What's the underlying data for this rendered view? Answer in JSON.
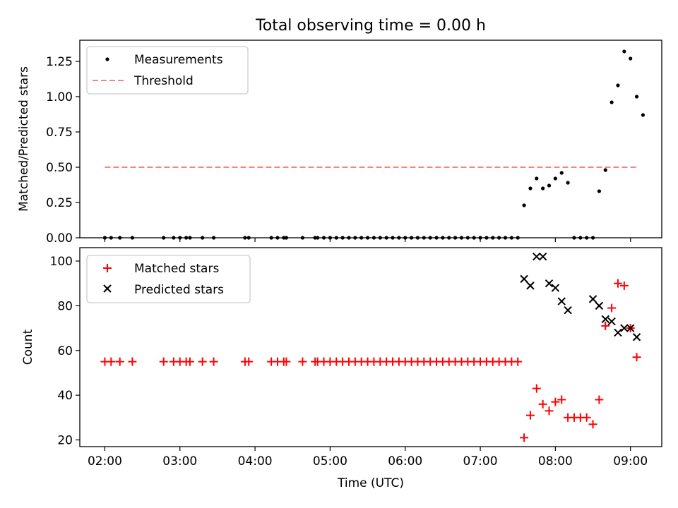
{
  "title": "Total observing time = 0.00 h",
  "colors": {
    "measurement": "#000000",
    "threshold": "#ff8080",
    "matched": "#ff0000",
    "predicted": "#000000"
  },
  "chart_data": [
    {
      "type": "scatter",
      "ylabel": "Matched/Predicted stars",
      "ylim": [
        0,
        1.4
      ],
      "xlim": [
        "01:40",
        "09:25"
      ],
      "yticks": [
        {
          "v": 0,
          "label": "0.00"
        },
        {
          "v": 0.25,
          "label": "0.25"
        },
        {
          "v": 0.5,
          "label": "0.50"
        },
        {
          "v": 0.75,
          "label": "0.75"
        },
        {
          "v": 1.0,
          "label": "1.00"
        },
        {
          "v": 1.25,
          "label": "1.25"
        }
      ],
      "legend": {
        "placement": "top-left",
        "entries": [
          "Measurements",
          "Threshold"
        ]
      },
      "series": [
        {
          "name": "Measurements",
          "marker": "dot",
          "points": [
            [
              "02:00",
              0
            ],
            [
              "02:05",
              0
            ],
            [
              "02:12",
              0
            ],
            [
              "02:22",
              0
            ],
            [
              "02:47",
              0
            ],
            [
              "02:55",
              0
            ],
            [
              "03:00",
              0
            ],
            [
              "03:05",
              0
            ],
            [
              "03:08",
              0
            ],
            [
              "03:18",
              0
            ],
            [
              "03:27",
              0
            ],
            [
              "03:52",
              0
            ],
            [
              "03:55",
              0
            ],
            [
              "04:13",
              0
            ],
            [
              "04:18",
              0
            ],
            [
              "04:23",
              0
            ],
            [
              "04:25",
              0
            ],
            [
              "04:38",
              0
            ],
            [
              "04:48",
              0
            ],
            [
              "04:50",
              0
            ],
            [
              "04:55",
              0
            ],
            [
              "05:00",
              0
            ],
            [
              "05:05",
              0
            ],
            [
              "05:10",
              0
            ],
            [
              "05:15",
              0
            ],
            [
              "05:20",
              0
            ],
            [
              "05:25",
              0
            ],
            [
              "05:30",
              0
            ],
            [
              "05:35",
              0
            ],
            [
              "05:40",
              0
            ],
            [
              "05:45",
              0
            ],
            [
              "05:50",
              0
            ],
            [
              "05:55",
              0
            ],
            [
              "06:00",
              0
            ],
            [
              "06:05",
              0
            ],
            [
              "06:10",
              0
            ],
            [
              "06:15",
              0
            ],
            [
              "06:20",
              0
            ],
            [
              "06:25",
              0
            ],
            [
              "06:30",
              0
            ],
            [
              "06:35",
              0
            ],
            [
              "06:40",
              0
            ],
            [
              "06:45",
              0
            ],
            [
              "06:50",
              0
            ],
            [
              "06:55",
              0
            ],
            [
              "07:00",
              0
            ],
            [
              "07:05",
              0
            ],
            [
              "07:10",
              0
            ],
            [
              "07:15",
              0
            ],
            [
              "07:20",
              0
            ],
            [
              "07:25",
              0
            ],
            [
              "07:30",
              0
            ],
            [
              "07:35",
              0.23
            ],
            [
              "07:40",
              0.35
            ],
            [
              "07:45",
              0.42
            ],
            [
              "07:50",
              0.35
            ],
            [
              "07:55",
              0.37
            ],
            [
              "08:00",
              0.42
            ],
            [
              "08:05",
              0.46
            ],
            [
              "08:10",
              0.39
            ],
            [
              "08:15",
              0
            ],
            [
              "08:20",
              0
            ],
            [
              "08:25",
              0
            ],
            [
              "08:30",
              0
            ],
            [
              "08:35",
              0.33
            ],
            [
              "08:40",
              0.48
            ],
            [
              "08:45",
              0.96
            ],
            [
              "08:50",
              1.08
            ],
            [
              "08:55",
              1.32
            ],
            [
              "09:00",
              1.27
            ],
            [
              "09:05",
              1.0
            ],
            [
              "09:10",
              0.87
            ]
          ]
        },
        {
          "name": "Threshold",
          "marker": "dashed-line",
          "points": [
            [
              "02:00",
              0.5
            ],
            [
              "09:05",
              0.5
            ]
          ]
        }
      ]
    },
    {
      "type": "scatter",
      "xlabel": "Time (UTC)",
      "ylabel": "Count",
      "ylim": [
        17,
        106
      ],
      "xlim": [
        "01:40",
        "09:25"
      ],
      "yticks": [
        {
          "v": 20,
          "label": "20"
        },
        {
          "v": 40,
          "label": "40"
        },
        {
          "v": 60,
          "label": "60"
        },
        {
          "v": 80,
          "label": "80"
        },
        {
          "v": 100,
          "label": "100"
        }
      ],
      "xticks": [
        {
          "v": "02:00",
          "label": "02:00"
        },
        {
          "v": "03:00",
          "label": "03:00"
        },
        {
          "v": "04:00",
          "label": "04:00"
        },
        {
          "v": "05:00",
          "label": "05:00"
        },
        {
          "v": "06:00",
          "label": "06:00"
        },
        {
          "v": "07:00",
          "label": "07:00"
        },
        {
          "v": "08:00",
          "label": "08:00"
        },
        {
          "v": "09:00",
          "label": "09:00"
        }
      ],
      "legend": {
        "placement": "top-left",
        "entries": [
          "Matched stars",
          "Predicted stars"
        ]
      },
      "series": [
        {
          "name": "Matched stars",
          "marker": "plus",
          "points": [
            [
              "02:00",
              55
            ],
            [
              "02:05",
              55
            ],
            [
              "02:12",
              55
            ],
            [
              "02:22",
              55
            ],
            [
              "02:47",
              55
            ],
            [
              "02:55",
              55
            ],
            [
              "03:00",
              55
            ],
            [
              "03:05",
              55
            ],
            [
              "03:08",
              55
            ],
            [
              "03:18",
              55
            ],
            [
              "03:27",
              55
            ],
            [
              "03:52",
              55
            ],
            [
              "03:55",
              55
            ],
            [
              "04:13",
              55
            ],
            [
              "04:18",
              55
            ],
            [
              "04:23",
              55
            ],
            [
              "04:25",
              55
            ],
            [
              "04:38",
              55
            ],
            [
              "04:48",
              55
            ],
            [
              "04:50",
              55
            ],
            [
              "04:55",
              55
            ],
            [
              "05:00",
              55
            ],
            [
              "05:05",
              55
            ],
            [
              "05:10",
              55
            ],
            [
              "05:15",
              55
            ],
            [
              "05:20",
              55
            ],
            [
              "05:25",
              55
            ],
            [
              "05:30",
              55
            ],
            [
              "05:35",
              55
            ],
            [
              "05:40",
              55
            ],
            [
              "05:45",
              55
            ],
            [
              "05:50",
              55
            ],
            [
              "05:55",
              55
            ],
            [
              "06:00",
              55
            ],
            [
              "06:05",
              55
            ],
            [
              "06:10",
              55
            ],
            [
              "06:15",
              55
            ],
            [
              "06:20",
              55
            ],
            [
              "06:25",
              55
            ],
            [
              "06:30",
              55
            ],
            [
              "06:35",
              55
            ],
            [
              "06:40",
              55
            ],
            [
              "06:45",
              55
            ],
            [
              "06:50",
              55
            ],
            [
              "06:55",
              55
            ],
            [
              "07:00",
              55
            ],
            [
              "07:05",
              55
            ],
            [
              "07:10",
              55
            ],
            [
              "07:15",
              55
            ],
            [
              "07:20",
              55
            ],
            [
              "07:25",
              55
            ],
            [
              "07:30",
              55
            ],
            [
              "07:35",
              21
            ],
            [
              "07:40",
              31
            ],
            [
              "07:45",
              43
            ],
            [
              "07:50",
              36
            ],
            [
              "07:55",
              33
            ],
            [
              "08:00",
              37
            ],
            [
              "08:05",
              38
            ],
            [
              "08:10",
              30
            ],
            [
              "08:15",
              30
            ],
            [
              "08:20",
              30
            ],
            [
              "08:25",
              30
            ],
            [
              "08:30",
              27
            ],
            [
              "08:35",
              38
            ],
            [
              "08:40",
              71
            ],
            [
              "08:45",
              79
            ],
            [
              "08:50",
              90
            ],
            [
              "08:55",
              89
            ],
            [
              "09:00",
              70
            ],
            [
              "09:05",
              57
            ]
          ]
        },
        {
          "name": "Predicted stars",
          "marker": "x",
          "points": [
            [
              "07:35",
              92
            ],
            [
              "07:40",
              89
            ],
            [
              "07:45",
              102
            ],
            [
              "07:50",
              102
            ],
            [
              "07:55",
              90
            ],
            [
              "08:00",
              88
            ],
            [
              "08:05",
              82
            ],
            [
              "08:10",
              78
            ],
            [
              "08:30",
              83
            ],
            [
              "08:35",
              80
            ],
            [
              "08:40",
              74
            ],
            [
              "08:45",
              73
            ],
            [
              "08:50",
              68
            ],
            [
              "08:55",
              70
            ],
            [
              "09:00",
              70
            ],
            [
              "09:05",
              66
            ]
          ]
        }
      ]
    }
  ]
}
